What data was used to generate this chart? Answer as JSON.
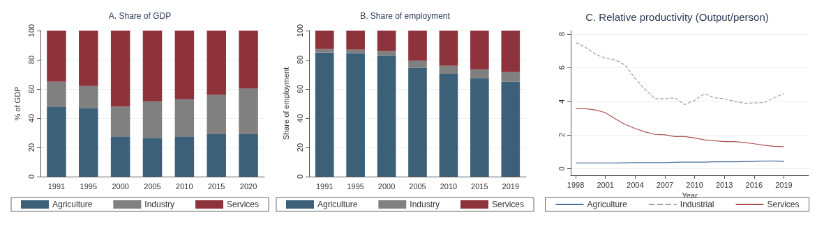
{
  "chart_data": [
    {
      "type": "bar",
      "stacked": true,
      "title": "A. Share of GDP",
      "ylabel": "% of GDP",
      "categories": [
        "1991",
        "1995",
        "2000",
        "2005",
        "2010",
        "2015",
        "2020"
      ],
      "series": [
        {
          "name": "Agriculture",
          "color": "#3d6079",
          "values": [
            48,
            47,
            27.5,
            26.5,
            27.5,
            29,
            29
          ]
        },
        {
          "name": "Industry",
          "color": "#808080",
          "values": [
            17,
            15,
            20.5,
            25,
            25.5,
            27,
            31.5
          ]
        },
        {
          "name": "Services",
          "color": "#8e333b",
          "values": [
            35,
            38,
            52,
            48.5,
            47,
            44,
            39.5
          ]
        }
      ],
      "ylim": [
        0,
        100
      ],
      "yticks": [
        0,
        20,
        40,
        60,
        80,
        100
      ],
      "grid": "y",
      "legend": "bottom"
    },
    {
      "type": "bar",
      "stacked": true,
      "title": "B. Share of employment",
      "ylabel": "Share of employment",
      "categories": [
        "1991",
        "1995",
        "2000",
        "2005",
        "2010",
        "2015",
        "2019"
      ],
      "series": [
        {
          "name": "Agriculture",
          "color": "#3d6079",
          "values": [
            85,
            84.5,
            83,
            74.5,
            70.5,
            67.5,
            65
          ]
        },
        {
          "name": "Industry",
          "color": "#808080",
          "values": [
            2.5,
            2.5,
            3,
            5,
            5.5,
            6,
            6.5
          ]
        },
        {
          "name": "Services",
          "color": "#8e333b",
          "values": [
            12.5,
            13,
            14,
            20.5,
            24,
            26.5,
            28.5
          ]
        }
      ],
      "ylim": [
        0,
        100
      ],
      "yticks": [
        0,
        20,
        40,
        60,
        80,
        100
      ],
      "grid": "y",
      "legend": "bottom"
    },
    {
      "type": "line",
      "title": "C. Relative productivity (Output/person)",
      "xlabel": "Year",
      "x": [
        1998,
        1999,
        2000,
        2001,
        2002,
        2003,
        2004,
        2005,
        2006,
        2007,
        2008,
        2009,
        2010,
        2011,
        2012,
        2013,
        2014,
        2015,
        2016,
        2017,
        2018,
        2019
      ],
      "series": [
        {
          "name": "Agriculture",
          "color": "#4a6f9a",
          "line_style": "solid",
          "values": [
            0.33,
            0.33,
            0.33,
            0.33,
            0.33,
            0.34,
            0.35,
            0.35,
            0.35,
            0.35,
            0.37,
            0.38,
            0.38,
            0.38,
            0.4,
            0.4,
            0.4,
            0.41,
            0.42,
            0.44,
            0.44,
            0.42
          ]
        },
        {
          "name": "Industrial",
          "color": "#a0a0a0",
          "line_style": "dashed",
          "values": [
            7.5,
            7.2,
            6.8,
            6.55,
            6.45,
            6.15,
            5.35,
            4.7,
            4.15,
            4.15,
            4.2,
            3.8,
            4.05,
            4.45,
            4.2,
            4.15,
            4.0,
            3.88,
            3.9,
            3.92,
            4.2,
            4.45
          ]
        },
        {
          "name": "Services",
          "color": "#b05050",
          "line_style": "solid",
          "values": [
            3.55,
            3.55,
            3.48,
            3.32,
            2.95,
            2.62,
            2.38,
            2.18,
            2.03,
            2.0,
            1.9,
            1.9,
            1.82,
            1.7,
            1.65,
            1.6,
            1.6,
            1.55,
            1.47,
            1.38,
            1.32,
            1.3
          ]
        }
      ],
      "xlim": [
        1997.5,
        2021.5
      ],
      "xticks": [
        1998,
        2001,
        2004,
        2007,
        2010,
        2013,
        2016,
        2019
      ],
      "ylim": [
        -0.4,
        8.2
      ],
      "yticks": [
        0,
        2,
        4,
        6,
        8
      ],
      "grid": "y",
      "legend": "bottom",
      "marker": "none"
    }
  ]
}
